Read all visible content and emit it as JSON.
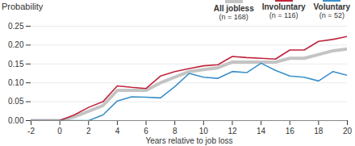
{
  "chart_data": {
    "type": "line",
    "y_label": "Probability",
    "x_label": "Years relative to job loss",
    "x": [
      -2,
      -1,
      0,
      1,
      2,
      3,
      4,
      5,
      6,
      7,
      8,
      9,
      10,
      11,
      12,
      13,
      14,
      15,
      16,
      17,
      18,
      19,
      20
    ],
    "series": [
      {
        "name": "All jobless (n = 168)",
        "color": "#c4c4c4",
        "values": [
          0,
          0,
          0,
          0.01,
          0.025,
          0.04,
          0.08,
          0.08,
          0.08,
          0.1,
          0.115,
          0.13,
          0.135,
          0.14,
          0.155,
          0.155,
          0.155,
          0.155,
          0.165,
          0.165,
          0.175,
          0.185,
          0.19
        ]
      },
      {
        "name": "Involuntary (n = 116)",
        "color": "#c0243c",
        "values": [
          0,
          0,
          0,
          0.015,
          0.035,
          0.05,
          0.092,
          0.088,
          0.085,
          0.118,
          0.13,
          0.138,
          0.145,
          0.148,
          0.17,
          0.167,
          0.165,
          0.163,
          0.187,
          0.187,
          0.21,
          0.215,
          0.223
        ]
      },
      {
        "name": "Voluntary (n = 52)",
        "color": "#3a8fc8",
        "values": [
          0,
          0,
          0,
          0,
          0,
          0.015,
          0.052,
          0.063,
          0.062,
          0.06,
          0.09,
          0.125,
          0.115,
          0.112,
          0.13,
          0.127,
          0.152,
          0.133,
          0.118,
          0.115,
          0.105,
          0.13,
          0.12
        ]
      }
    ],
    "xlim": [
      -2,
      20
    ],
    "xticks": [
      -2,
      0,
      2,
      4,
      6,
      8,
      10,
      12,
      14,
      16,
      18,
      20
    ],
    "ylim": [
      0,
      0.25
    ],
    "yticks": [
      {
        "value": 0,
        "label": "0.00"
      },
      {
        "value": 0.05,
        "label": "0.05"
      },
      {
        "value": 0.1,
        "label": "0.10"
      },
      {
        "value": 0.15,
        "label": "0.15"
      },
      {
        "value": 0.2,
        "label": "0.20"
      },
      {
        "value": 0.25,
        "label": "0.25"
      }
    ],
    "grid": true,
    "legend": "top-right"
  }
}
